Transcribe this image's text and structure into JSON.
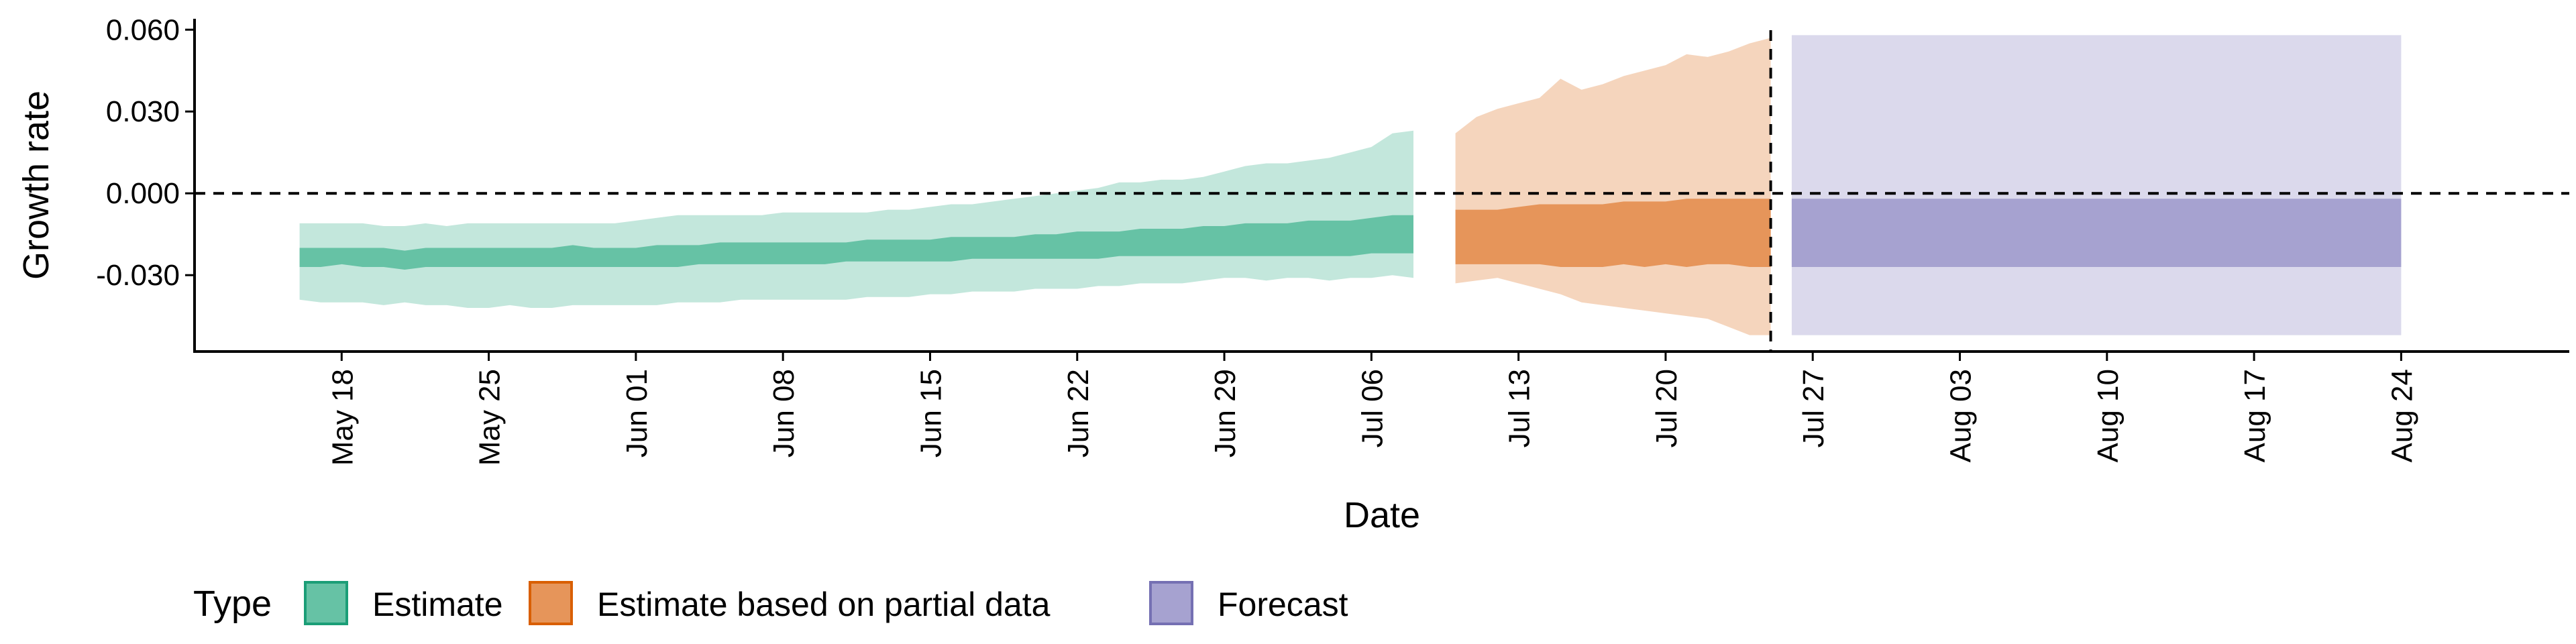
{
  "chart_data": {
    "type": "area",
    "xlabel": "Date",
    "ylabel": "Growth rate",
    "xlim": [
      "2021-05-11",
      "2021-09-01"
    ],
    "ylim": [
      -0.058,
      0.064
    ],
    "y_ticks": [
      -0.03,
      0.0,
      0.03,
      0.06
    ],
    "y_tick_labels": [
      "-0.030",
      "0.000",
      "0.030",
      "0.060"
    ],
    "x_ticks": [
      "2021-05-18",
      "2021-05-25",
      "2021-06-01",
      "2021-06-08",
      "2021-06-15",
      "2021-06-22",
      "2021-06-29",
      "2021-07-06",
      "2021-07-13",
      "2021-07-20",
      "2021-07-27",
      "2021-08-03",
      "2021-08-10",
      "2021-08-17",
      "2021-08-24"
    ],
    "x_tick_labels": [
      "May 18",
      "May 25",
      "Jun 01",
      "Jun 08",
      "Jun 15",
      "Jun 22",
      "Jun 29",
      "Jul 06",
      "Jul 13",
      "Jul 20",
      "Jul 27",
      "Aug 03",
      "Aug 10",
      "Aug 17",
      "Aug 24"
    ],
    "reference_lines": {
      "horizontal_y": 0.0,
      "vertical_x": "2021-07-25"
    },
    "legend": {
      "title": "Type",
      "position": "bottom-left",
      "entries": [
        {
          "label": "Estimate",
          "fill": "#66c2a5",
          "border": "#1b9e77"
        },
        {
          "label": "Estimate based on partial data",
          "fill": "#e6955a",
          "border": "#d95f02"
        },
        {
          "label": "Forecast",
          "fill": "#a6a2d0",
          "border": "#7570b3"
        }
      ]
    },
    "series": [
      {
        "name": "Estimate",
        "inner_color": "#66c2a5",
        "outer_color": "#c3e7dc",
        "x": [
          "2021-05-16",
          "2021-05-17",
          "2021-05-18",
          "2021-05-19",
          "2021-05-20",
          "2021-05-21",
          "2021-05-22",
          "2021-05-23",
          "2021-05-24",
          "2021-05-25",
          "2021-05-26",
          "2021-05-27",
          "2021-05-28",
          "2021-05-29",
          "2021-05-30",
          "2021-05-31",
          "2021-06-01",
          "2021-06-02",
          "2021-06-03",
          "2021-06-04",
          "2021-06-05",
          "2021-06-06",
          "2021-06-07",
          "2021-06-08",
          "2021-06-09",
          "2021-06-10",
          "2021-06-11",
          "2021-06-12",
          "2021-06-13",
          "2021-06-14",
          "2021-06-15",
          "2021-06-16",
          "2021-06-17",
          "2021-06-18",
          "2021-06-19",
          "2021-06-20",
          "2021-06-21",
          "2021-06-22",
          "2021-06-23",
          "2021-06-24",
          "2021-06-25",
          "2021-06-26",
          "2021-06-27",
          "2021-06-28",
          "2021-06-29",
          "2021-06-30",
          "2021-07-01",
          "2021-07-02",
          "2021-07-03",
          "2021-07-04",
          "2021-07-05",
          "2021-07-06",
          "2021-07-07",
          "2021-07-08"
        ],
        "outer_lower": [
          -0.039,
          -0.04,
          -0.04,
          -0.04,
          -0.041,
          -0.04,
          -0.041,
          -0.041,
          -0.042,
          -0.042,
          -0.041,
          -0.042,
          -0.042,
          -0.041,
          -0.041,
          -0.041,
          -0.041,
          -0.041,
          -0.04,
          -0.04,
          -0.04,
          -0.039,
          -0.039,
          -0.039,
          -0.039,
          -0.039,
          -0.039,
          -0.038,
          -0.038,
          -0.038,
          -0.037,
          -0.037,
          -0.036,
          -0.036,
          -0.036,
          -0.035,
          -0.035,
          -0.035,
          -0.034,
          -0.034,
          -0.033,
          -0.033,
          -0.033,
          -0.032,
          -0.031,
          -0.031,
          -0.032,
          -0.031,
          -0.031,
          -0.032,
          -0.031,
          -0.031,
          -0.03,
          -0.031
        ],
        "inner_lower": [
          -0.027,
          -0.027,
          -0.026,
          -0.027,
          -0.027,
          -0.028,
          -0.027,
          -0.027,
          -0.027,
          -0.027,
          -0.027,
          -0.027,
          -0.027,
          -0.027,
          -0.027,
          -0.027,
          -0.027,
          -0.027,
          -0.027,
          -0.026,
          -0.026,
          -0.026,
          -0.026,
          -0.026,
          -0.026,
          -0.026,
          -0.025,
          -0.025,
          -0.025,
          -0.025,
          -0.025,
          -0.025,
          -0.024,
          -0.024,
          -0.024,
          -0.024,
          -0.024,
          -0.024,
          -0.024,
          -0.023,
          -0.023,
          -0.023,
          -0.023,
          -0.023,
          -0.023,
          -0.023,
          -0.023,
          -0.023,
          -0.023,
          -0.023,
          -0.023,
          -0.022,
          -0.022,
          -0.022
        ],
        "inner_upper": [
          -0.02,
          -0.02,
          -0.02,
          -0.02,
          -0.02,
          -0.021,
          -0.02,
          -0.02,
          -0.02,
          -0.02,
          -0.02,
          -0.02,
          -0.02,
          -0.019,
          -0.02,
          -0.02,
          -0.02,
          -0.019,
          -0.019,
          -0.019,
          -0.018,
          -0.018,
          -0.018,
          -0.018,
          -0.018,
          -0.018,
          -0.018,
          -0.017,
          -0.017,
          -0.017,
          -0.017,
          -0.016,
          -0.016,
          -0.016,
          -0.016,
          -0.015,
          -0.015,
          -0.014,
          -0.014,
          -0.014,
          -0.013,
          -0.013,
          -0.013,
          -0.012,
          -0.012,
          -0.011,
          -0.011,
          -0.011,
          -0.01,
          -0.01,
          -0.01,
          -0.009,
          -0.008,
          -0.008
        ],
        "outer_upper": [
          -0.011,
          -0.011,
          -0.011,
          -0.011,
          -0.012,
          -0.012,
          -0.011,
          -0.012,
          -0.011,
          -0.011,
          -0.011,
          -0.011,
          -0.011,
          -0.011,
          -0.011,
          -0.011,
          -0.01,
          -0.009,
          -0.008,
          -0.008,
          -0.008,
          -0.008,
          -0.008,
          -0.007,
          -0.007,
          -0.007,
          -0.007,
          -0.007,
          -0.006,
          -0.006,
          -0.005,
          -0.004,
          -0.004,
          -0.003,
          -0.002,
          -0.001,
          0.0,
          0.001,
          0.002,
          0.004,
          0.004,
          0.005,
          0.005,
          0.006,
          0.008,
          0.01,
          0.011,
          0.011,
          0.012,
          0.013,
          0.015,
          0.017,
          0.022,
          0.023
        ]
      },
      {
        "name": "Estimate based on partial data",
        "inner_color": "#e6955a",
        "outer_color": "#f5d5bd",
        "x": [
          "2021-07-10",
          "2021-07-11",
          "2021-07-12",
          "2021-07-13",
          "2021-07-14",
          "2021-07-15",
          "2021-07-16",
          "2021-07-17",
          "2021-07-18",
          "2021-07-19",
          "2021-07-20",
          "2021-07-21",
          "2021-07-22",
          "2021-07-23",
          "2021-07-24",
          "2021-07-25"
        ],
        "outer_lower": [
          -0.033,
          -0.032,
          -0.031,
          -0.033,
          -0.035,
          -0.037,
          -0.04,
          -0.041,
          -0.042,
          -0.043,
          -0.044,
          -0.045,
          -0.046,
          -0.049,
          -0.052,
          -0.052
        ],
        "inner_lower": [
          -0.026,
          -0.026,
          -0.026,
          -0.026,
          -0.026,
          -0.027,
          -0.027,
          -0.027,
          -0.026,
          -0.027,
          -0.026,
          -0.027,
          -0.026,
          -0.026,
          -0.027,
          -0.027
        ],
        "inner_upper": [
          -0.006,
          -0.006,
          -0.006,
          -0.005,
          -0.004,
          -0.004,
          -0.004,
          -0.004,
          -0.003,
          -0.003,
          -0.003,
          -0.002,
          -0.002,
          -0.002,
          -0.002,
          -0.002
        ],
        "outer_upper": [
          0.022,
          0.028,
          0.031,
          0.033,
          0.035,
          0.042,
          0.038,
          0.04,
          0.043,
          0.045,
          0.047,
          0.051,
          0.05,
          0.052,
          0.055,
          0.057
        ]
      },
      {
        "name": "Forecast",
        "inner_color": "#a6a2d0",
        "outer_color": "#dbd9ec",
        "x": [
          "2021-07-26",
          "2021-08-24"
        ],
        "outer_lower": [
          -0.052,
          -0.052
        ],
        "inner_lower": [
          -0.027,
          -0.027
        ],
        "inner_upper": [
          -0.002,
          -0.002
        ],
        "outer_upper": [
          0.058,
          0.058
        ]
      }
    ]
  }
}
